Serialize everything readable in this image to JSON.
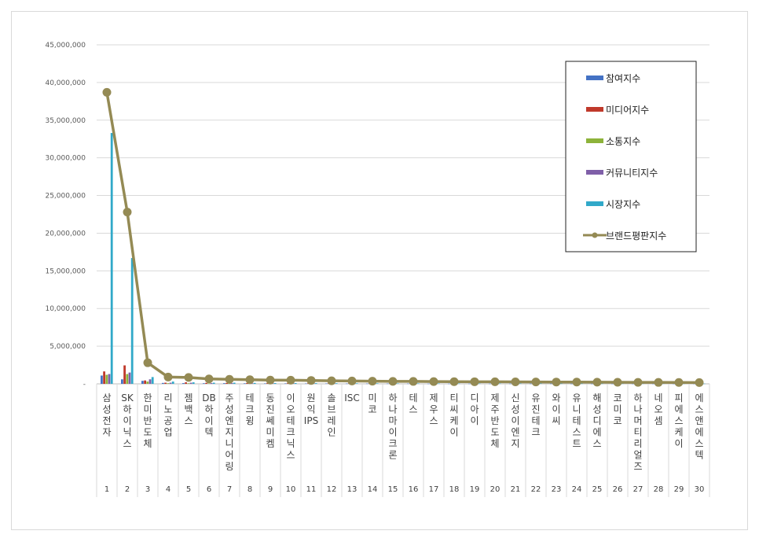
{
  "chart_data": {
    "type": "bar",
    "title": "",
    "xlabel": "",
    "ylabel": "",
    "ylim": [
      0,
      45000000
    ],
    "yticks": [
      "-",
      "5,000,000",
      "10,000,000",
      "15,000,000",
      "20,000,000",
      "25,000,000",
      "30,000,000",
      "35,000,000",
      "40,000,000",
      "45,000,000"
    ],
    "grid": true,
    "legend_position": "top-right",
    "categories": [
      "삼성전자",
      "SK하이닉스",
      "한미반도체",
      "리노공업",
      "젬백스",
      "DB하이텍",
      "주성엔지니어링",
      "테크윙",
      "동진쎄미켐",
      "이오테크닉스",
      "원익IPS",
      "솔브레인",
      "ISC",
      "미코",
      "하나마이크론",
      "테스",
      "제우스",
      "티씨케이",
      "디아이",
      "제주반도체",
      "신성이엔지",
      "유진테크",
      "와이씨",
      "유니테스트",
      "해성디에스",
      "코미코",
      "하나머티리얼즈",
      "네오셈",
      "피에스케이",
      "에스앤에스텍"
    ],
    "ranks": [
      "1",
      "2",
      "3",
      "4",
      "5",
      "6",
      "7",
      "8",
      "9",
      "10",
      "11",
      "12",
      "13",
      "14",
      "15",
      "16",
      "17",
      "18",
      "19",
      "20",
      "21",
      "22",
      "23",
      "24",
      "25",
      "26",
      "27",
      "28",
      "29",
      "30"
    ],
    "series": [
      {
        "name": "참여지수",
        "kind": "bar",
        "color": "#4472C4",
        "values": [
          1100000,
          600000,
          400000,
          120000,
          100000,
          80000,
          90000,
          70000,
          60000,
          60000,
          50000,
          50000,
          40000,
          40000,
          40000,
          40000,
          30000,
          30000,
          30000,
          30000,
          30000,
          30000,
          30000,
          20000,
          20000,
          20000,
          20000,
          20000,
          20000,
          20000
        ]
      },
      {
        "name": "미디어지수",
        "kind": "bar",
        "color": "#C0392B",
        "values": [
          1650000,
          2450000,
          450000,
          150000,
          200000,
          130000,
          120000,
          110000,
          110000,
          100000,
          90000,
          90000,
          80000,
          80000,
          80000,
          70000,
          70000,
          60000,
          60000,
          60000,
          60000,
          60000,
          50000,
          50000,
          50000,
          50000,
          50000,
          40000,
          40000,
          40000
        ]
      },
      {
        "name": "소통지수",
        "kind": "bar",
        "color": "#8DB33A",
        "values": [
          1200000,
          1300000,
          300000,
          90000,
          80000,
          60000,
          60000,
          50000,
          50000,
          50000,
          40000,
          40000,
          40000,
          30000,
          30000,
          30000,
          30000,
          30000,
          30000,
          20000,
          20000,
          20000,
          20000,
          20000,
          20000,
          20000,
          20000,
          20000,
          20000,
          20000
        ]
      },
      {
        "name": "커뮤니티지수",
        "kind": "bar",
        "color": "#7F5FA8",
        "values": [
          1300000,
          1500000,
          600000,
          150000,
          150000,
          100000,
          100000,
          80000,
          80000,
          80000,
          70000,
          70000,
          60000,
          60000,
          60000,
          50000,
          50000,
          50000,
          50000,
          50000,
          40000,
          40000,
          40000,
          40000,
          40000,
          40000,
          40000,
          30000,
          30000,
          30000
        ]
      },
      {
        "name": "시장지수",
        "kind": "bar",
        "color": "#31A9C9",
        "values": [
          33300000,
          16700000,
          900000,
          300000,
          200000,
          150000,
          150000,
          120000,
          100000,
          100000,
          90000,
          80000,
          70000,
          70000,
          60000,
          60000,
          60000,
          50000,
          50000,
          50000,
          50000,
          50000,
          40000,
          40000,
          40000,
          40000,
          40000,
          40000,
          30000,
          30000
        ]
      },
      {
        "name": "브랜드평판지수",
        "kind": "line",
        "color": "#948A54",
        "values": [
          38700000,
          22800000,
          2800000,
          900000,
          850000,
          650000,
          600000,
          550000,
          500000,
          480000,
          450000,
          400000,
          380000,
          350000,
          330000,
          320000,
          300000,
          290000,
          280000,
          270000,
          260000,
          250000,
          240000,
          230000,
          220000,
          210000,
          200000,
          190000,
          180000,
          170000
        ]
      }
    ]
  }
}
